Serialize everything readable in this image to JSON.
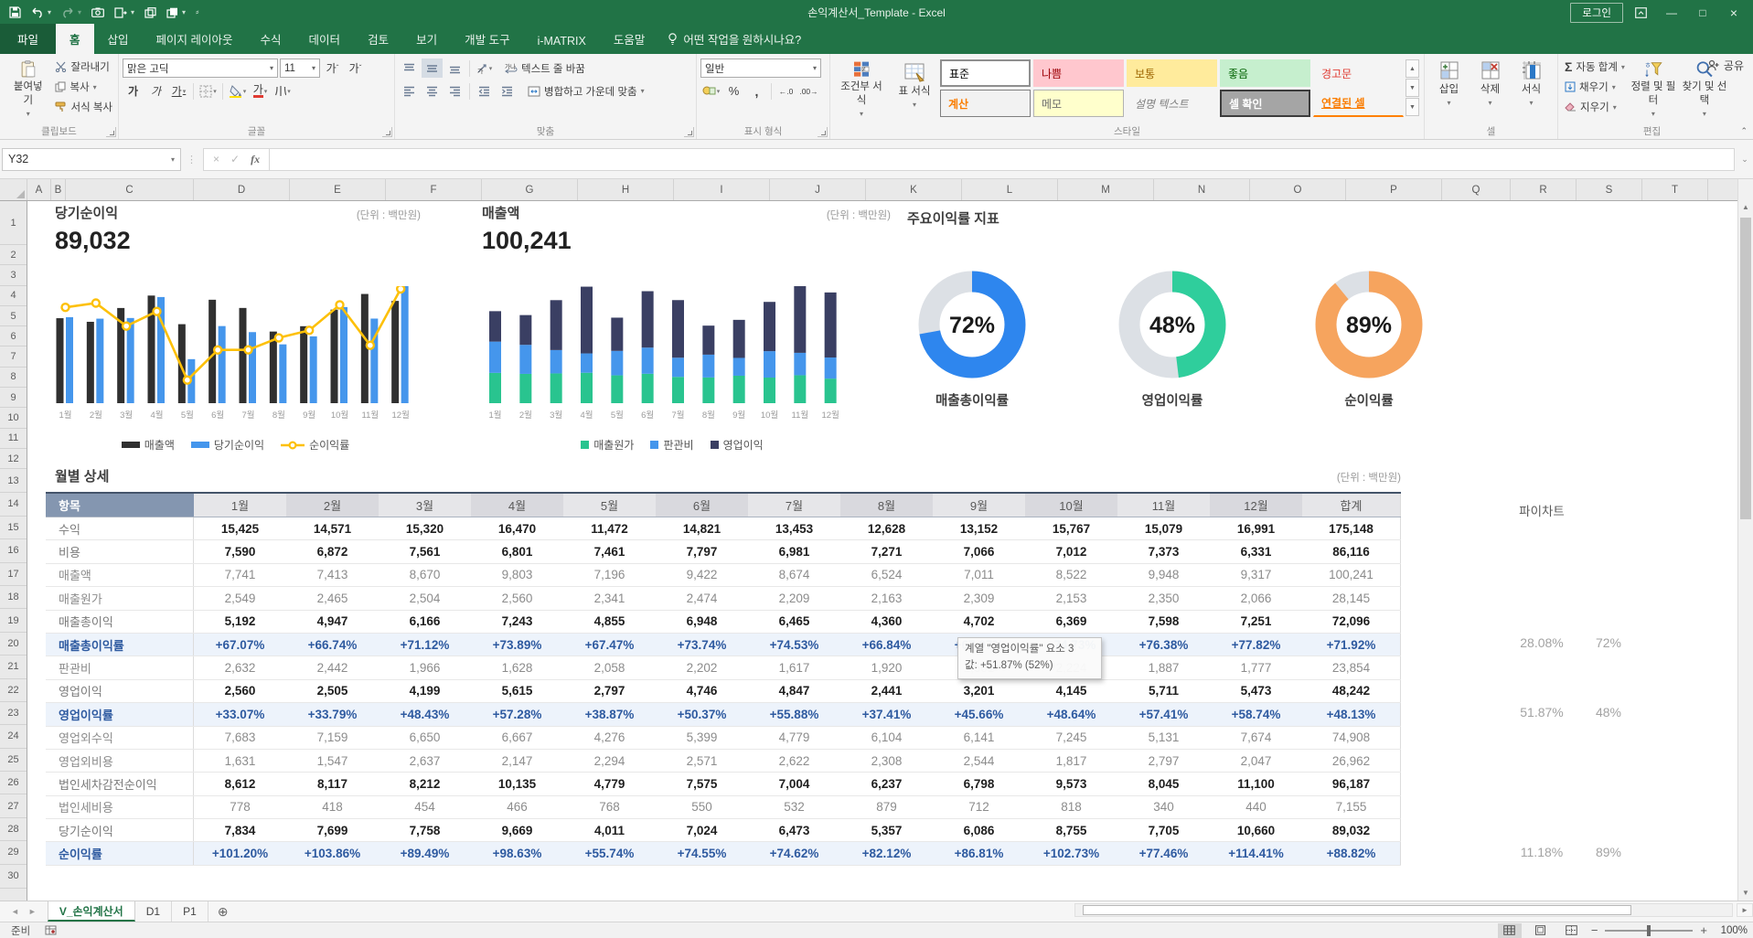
{
  "titlebar": {
    "title": "손익계산서_Template  -  Excel",
    "login_label": "로그인"
  },
  "ribbon": {
    "tabs": [
      "파일",
      "홈",
      "삽입",
      "페이지 레이아웃",
      "수식",
      "데이터",
      "검토",
      "보기",
      "개발 도구",
      "i-MATRIX",
      "도움말"
    ],
    "active_tab": "홈",
    "search_placeholder": "어떤 작업을 원하시나요?",
    "share_label": "공유",
    "groups": {
      "clipboard": {
        "label": "클립보드",
        "paste": "붙여넣기",
        "cut": "잘라내기",
        "copy": "복사",
        "format_painter": "서식 복사"
      },
      "font": {
        "label": "글꼴",
        "name": "맑은 고딕",
        "size": "11"
      },
      "alignment": {
        "label": "맞춤",
        "wrap_text": "텍스트 줄 바꿈",
        "merge_center": "병합하고 가운데 맞춤"
      },
      "number": {
        "label": "표시 형식",
        "format": "일반"
      },
      "styles": {
        "label": "스타일",
        "conditional": "조건부 서식",
        "format_as_table": "표 서식",
        "gallery": [
          "표준",
          "나쁨",
          "보통",
          "좋음",
          "경고문",
          "계산",
          "메모",
          "설명 텍스트",
          "셀 확인",
          "연결된 셀"
        ]
      },
      "cells": {
        "label": "셀",
        "insert": "삽입",
        "delete": "삭제",
        "format": "서식"
      },
      "editing": {
        "label": "편집",
        "autosum": "자동 합계",
        "fill": "채우기",
        "clear": "지우기",
        "sort_filter": "정렬 및 필터",
        "find_select": "찾기 및 선택"
      }
    }
  },
  "formula_bar": {
    "name_box": "Y32",
    "formula": ""
  },
  "grid": {
    "columns": [
      "A",
      "B",
      "C",
      "D",
      "E",
      "F",
      "G",
      "H",
      "I",
      "J",
      "K",
      "L",
      "M",
      "N",
      "O",
      "P",
      "Q",
      "R",
      "S",
      "T"
    ],
    "row_count": 30
  },
  "dashboard": {
    "unit_label": "(단위 : 백만원)",
    "monthly_title": "월별 상세",
    "pie_col_header": "파이차트",
    "tooltip": {
      "line1": "계열 \"영업이익률\" 요소 3",
      "line2": "값: +51.87% (52%)"
    }
  },
  "chart_data": [
    {
      "type": "bar",
      "title": "당기순이익",
      "kpi": "89,032",
      "categories": [
        "1월",
        "2월",
        "3월",
        "4월",
        "5월",
        "6월",
        "7월",
        "8월",
        "9월",
        "10월",
        "11월",
        "12월"
      ],
      "series": [
        {
          "name": "매출액",
          "color": "#303030",
          "values": [
            7741,
            7413,
            8670,
            9803,
            7196,
            9422,
            8674,
            6524,
            7011,
            8522,
            9948,
            9317
          ]
        },
        {
          "name": "당기순이익",
          "color": "#4596ec",
          "values": [
            7834,
            7699,
            7758,
            9669,
            4011,
            7024,
            6473,
            5357,
            6086,
            8755,
            7705,
            10660
          ]
        }
      ],
      "line_series": {
        "name": "순이익률",
        "color": "#fdc008",
        "values": [
          101.2,
          103.86,
          89.49,
          98.63,
          55.74,
          74.55,
          74.62,
          82.12,
          86.81,
          102.73,
          77.46,
          114.41
        ]
      },
      "legend_position": "bottom"
    },
    {
      "type": "stacked-bar",
      "title": "매출액",
      "kpi": "100,241",
      "categories": [
        "1월",
        "2월",
        "3월",
        "4월",
        "5월",
        "6월",
        "7월",
        "8월",
        "9월",
        "10월",
        "11월",
        "12월"
      ],
      "series": [
        {
          "name": "매출원가",
          "color": "#29c48f",
          "values": [
            2549,
            2465,
            2504,
            2560,
            2341,
            2474,
            2209,
            2163,
            2309,
            2153,
            2350,
            2066
          ]
        },
        {
          "name": "판관비",
          "color": "#4596ec",
          "values": [
            2632,
            2442,
            1966,
            1628,
            2058,
            2202,
            1617,
            1920,
            1501,
            2224,
            1887,
            1777
          ]
        },
        {
          "name": "영업이익",
          "color": "#3a3f63",
          "values": [
            2560,
            2505,
            4199,
            5615,
            2797,
            4746,
            4847,
            2441,
            3201,
            4145,
            5711,
            5473
          ]
        }
      ],
      "legend_position": "bottom"
    },
    {
      "type": "donut",
      "title": "주요이익률 지표",
      "track_color": "#dce0e5",
      "items": [
        {
          "label": "매출총이익률",
          "value": 72,
          "display": "72%",
          "color": "#2e86ee"
        },
        {
          "label": "영업이익률",
          "value": 48,
          "display": "48%",
          "color": "#2fce9c"
        },
        {
          "label": "순이익률",
          "value": 89,
          "display": "89%",
          "color": "#f6a45e"
        }
      ]
    }
  ],
  "table": {
    "item_header": "항목",
    "months": [
      "1월",
      "2월",
      "3월",
      "4월",
      "5월",
      "6월",
      "7월",
      "8월",
      "9월",
      "10월",
      "11월",
      "12월"
    ],
    "total_header": "합계",
    "rows": [
      {
        "label": "수익",
        "style": "bold",
        "values": [
          "15,425",
          "14,571",
          "15,320",
          "16,470",
          "11,472",
          "14,821",
          "13,453",
          "12,628",
          "13,152",
          "15,767",
          "15,079",
          "16,991"
        ],
        "total": "175,148"
      },
      {
        "label": "비용",
        "style": "bold",
        "values": [
          "7,590",
          "6,872",
          "7,561",
          "6,801",
          "7,461",
          "7,797",
          "6,981",
          "7,271",
          "7,066",
          "7,012",
          "7,373",
          "6,331"
        ],
        "total": "86,116"
      },
      {
        "label": "매출액",
        "style": "plain",
        "values": [
          "7,741",
          "7,413",
          "8,670",
          "9,803",
          "7,196",
          "9,422",
          "8,674",
          "6,524",
          "7,011",
          "8,522",
          "9,948",
          "9,317"
        ],
        "total": "100,241"
      },
      {
        "label": "매출원가",
        "style": "plain",
        "values": [
          "2,549",
          "2,465",
          "2,504",
          "2,560",
          "2,341",
          "2,474",
          "2,209",
          "2,163",
          "2,309",
          "2,153",
          "2,350",
          "2,066"
        ],
        "total": "28,145"
      },
      {
        "label": "매출총이익",
        "style": "bold",
        "values": [
          "5,192",
          "4,947",
          "6,166",
          "7,243",
          "4,855",
          "6,948",
          "6,465",
          "4,360",
          "4,702",
          "6,369",
          "7,598",
          "7,251"
        ],
        "total": "72,096"
      },
      {
        "label": "매출총이익률",
        "style": "ratio",
        "values": [
          "+67.07%",
          "+66.74%",
          "+71.12%",
          "+73.89%",
          "+67.47%",
          "+73.74%",
          "+74.53%",
          "+66.84%",
          "+67.07%",
          "+74.73%",
          "+76.38%",
          "+77.82%"
        ],
        "total": "+71.92%",
        "pie": [
          "28.08%",
          "72%"
        ]
      },
      {
        "label": "판관비",
        "style": "plain",
        "values": [
          "2,632",
          "2,442",
          "1,966",
          "1,628",
          "2,058",
          "2,202",
          "1,617",
          "1,920",
          "1,501",
          "2,224",
          "1,887",
          "1,777"
        ],
        "total": "23,854"
      },
      {
        "label": "영업이익",
        "style": "bold",
        "values": [
          "2,560",
          "2,505",
          "4,199",
          "5,615",
          "2,797",
          "4,746",
          "4,847",
          "2,441",
          "3,201",
          "4,145",
          "5,711",
          "5,473"
        ],
        "total": "48,242"
      },
      {
        "label": "영업이익률",
        "style": "ratio",
        "values": [
          "+33.07%",
          "+33.79%",
          "+48.43%",
          "+57.28%",
          "+38.87%",
          "+50.37%",
          "+55.88%",
          "+37.41%",
          "+45.66%",
          "+48.64%",
          "+57.41%",
          "+58.74%"
        ],
        "total": "+48.13%",
        "pie": [
          "51.87%",
          "48%"
        ]
      },
      {
        "label": "영업외수익",
        "style": "plain",
        "values": [
          "7,683",
          "7,159",
          "6,650",
          "6,667",
          "4,276",
          "5,399",
          "4,779",
          "6,104",
          "6,141",
          "7,245",
          "5,131",
          "7,674"
        ],
        "total": "74,908"
      },
      {
        "label": "영업외비용",
        "style": "plain",
        "values": [
          "1,631",
          "1,547",
          "2,637",
          "2,147",
          "2,294",
          "2,571",
          "2,622",
          "2,308",
          "2,544",
          "1,817",
          "2,797",
          "2,047"
        ],
        "total": "26,962"
      },
      {
        "label": "법인세차감전순이익",
        "style": "bold",
        "values": [
          "8,612",
          "8,117",
          "8,212",
          "10,135",
          "4,779",
          "7,575",
          "7,004",
          "6,237",
          "6,798",
          "9,573",
          "8,045",
          "11,100"
        ],
        "total": "96,187"
      },
      {
        "label": "법인세비용",
        "style": "plain",
        "values": [
          "778",
          "418",
          "454",
          "466",
          "768",
          "550",
          "532",
          "879",
          "712",
          "818",
          "340",
          "440"
        ],
        "total": "7,155"
      },
      {
        "label": "당기순이익",
        "style": "bold",
        "values": [
          "7,834",
          "7,699",
          "7,758",
          "9,669",
          "4,011",
          "7,024",
          "6,473",
          "5,357",
          "6,086",
          "8,755",
          "7,705",
          "10,660"
        ],
        "total": "89,032"
      },
      {
        "label": "순이익률",
        "style": "ratio",
        "values": [
          "+101.20%",
          "+103.86%",
          "+89.49%",
          "+98.63%",
          "+55.74%",
          "+74.55%",
          "+74.62%",
          "+82.12%",
          "+86.81%",
          "+102.73%",
          "+77.46%",
          "+114.41%"
        ],
        "total": "+88.82%",
        "pie": [
          "11.18%",
          "89%"
        ]
      }
    ]
  },
  "sheet_tabs": {
    "tabs": [
      "V_손익계산서",
      "D1",
      "P1"
    ],
    "active": "V_손익계산서"
  },
  "status_bar": {
    "ready": "준비",
    "zoom": "100%"
  }
}
